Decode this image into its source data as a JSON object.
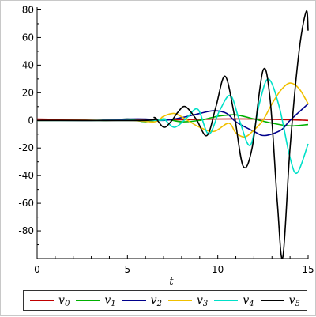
{
  "chart_data": {
    "type": "line",
    "xlabel": "t",
    "ylabel": "",
    "xlim": [
      0,
      15
    ],
    "ylim": [
      -100,
      82
    ],
    "x_ticks": [
      "0",
      "5",
      "10",
      "15"
    ],
    "y_ticks": [
      "80",
      "60",
      "40",
      "20",
      "0",
      "-20",
      "-40",
      "-60",
      "-80"
    ],
    "x_tick_values": [
      0,
      5,
      10,
      15
    ],
    "y_tick_values": [
      80,
      60,
      40,
      20,
      0,
      -20,
      -40,
      -60,
      -80
    ],
    "legend_position": "bottom",
    "grid": false,
    "series": [
      {
        "name": "v",
        "subscript": "0",
        "color": "#c00000",
        "x": [
          0,
          2,
          4,
          6,
          8,
          10,
          12,
          14,
          15
        ],
        "y": [
          1,
          0.5,
          0,
          0.5,
          0.5,
          1,
          1,
          0.5,
          0
        ]
      },
      {
        "name": "v",
        "subscript": "1",
        "color": "#00b000",
        "x": [
          0,
          1,
          2,
          3,
          4,
          5,
          6,
          7,
          8,
          9,
          10,
          11,
          12,
          13,
          14,
          15
        ],
        "y": [
          0,
          0,
          0,
          0,
          0,
          1,
          -1,
          1,
          -1,
          0,
          3,
          4,
          1,
          -2,
          -4,
          -3
        ]
      },
      {
        "name": "v",
        "subscript": "2",
        "color": "#00008b",
        "x": [
          0,
          3,
          4,
          5,
          6,
          7,
          8,
          9,
          9.8,
          10.5,
          11,
          12,
          12.6,
          13.5,
          14,
          15
        ],
        "y": [
          0,
          0,
          0.5,
          1,
          1,
          0,
          2,
          5,
          7,
          5,
          -1,
          -8,
          -11,
          -7,
          0,
          12
        ]
      },
      {
        "name": "v",
        "subscript": "3",
        "color": "#f0c000",
        "x": [
          0,
          5,
          6.5,
          7,
          7.6,
          8.2,
          9,
          9.8,
          10.6,
          11,
          11.5,
          12,
          12.5,
          13,
          13.5,
          14,
          14.5,
          15
        ],
        "y": [
          0,
          0,
          -1,
          3,
          5,
          1,
          -5,
          -8,
          -2,
          -9,
          -12,
          -7,
          0,
          12,
          22,
          27,
          23,
          12
        ]
      },
      {
        "name": "v",
        "subscript": "4",
        "color": "#00e0c8",
        "x": [
          0,
          6.5,
          7,
          7.6,
          8.3,
          8.9,
          9.5,
          10.1,
          10.7,
          11.2,
          11.8,
          12.3,
          12.8,
          13.4,
          14,
          14.4,
          15
        ],
        "y": [
          0,
          0,
          1,
          -5,
          2,
          8,
          -10,
          7,
          18,
          0,
          -18,
          12,
          30,
          10,
          -27,
          -38,
          -17
        ]
      },
      {
        "name": "v",
        "subscript": "5",
        "color": "#000000",
        "x": [
          0,
          6,
          6.5,
          7,
          7.4,
          7.8,
          8.2,
          8.8,
          9.4,
          9.9,
          10.4,
          10.9,
          11.4,
          11.9,
          12.5,
          12.9,
          13.3,
          13.6,
          14,
          14.5,
          14.9,
          15
        ],
        "y": [
          0,
          0,
          2,
          -5,
          -1,
          6,
          10,
          1,
          -11,
          10,
          32,
          5,
          -33,
          -20,
          36,
          15,
          -60,
          -99,
          -20,
          50,
          79,
          65
        ]
      }
    ]
  }
}
